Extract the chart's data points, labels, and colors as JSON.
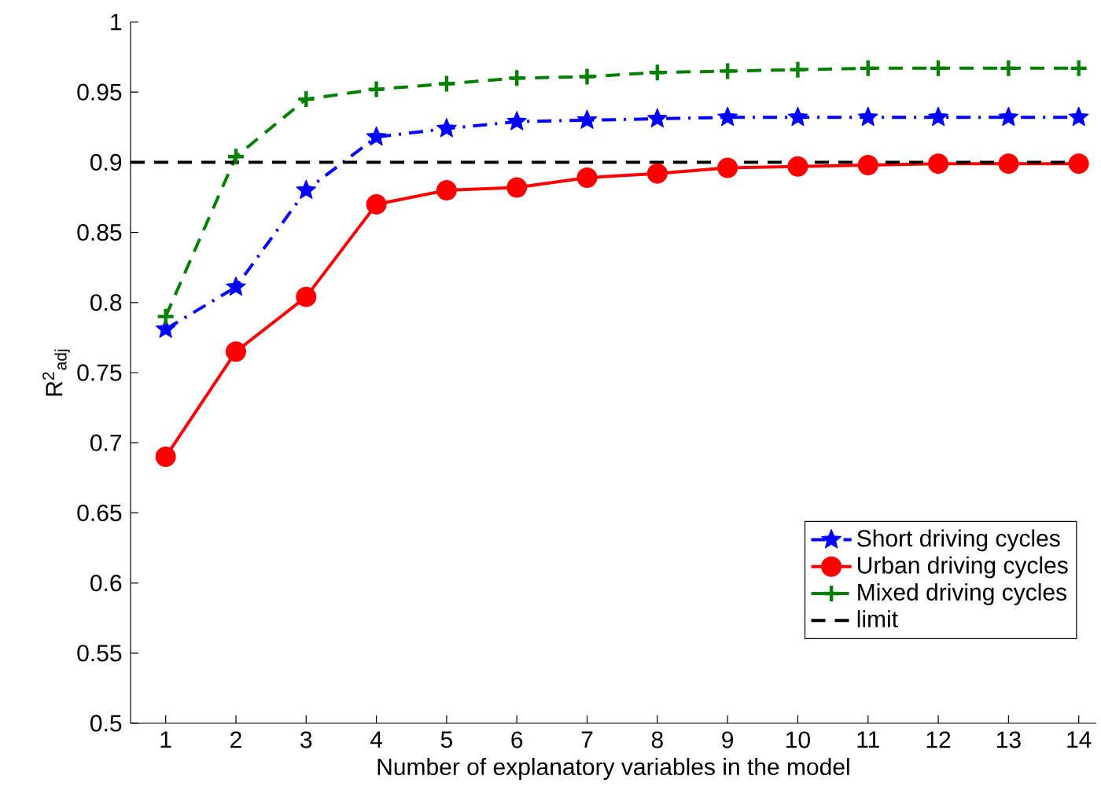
{
  "chart_data": {
    "type": "line",
    "xlabel": "Number of explanatory variables in the model",
    "ylabel": "R$^{2}$$_{adj}$",
    "x": [
      1,
      2,
      3,
      4,
      5,
      6,
      7,
      8,
      9,
      10,
      11,
      12,
      13,
      14
    ],
    "series": [
      {
        "name": "Short driving cycles",
        "color": "#0000ff",
        "marker": "star",
        "line_style": "dashdot",
        "values": [
          0.781,
          0.811,
          0.88,
          0.918,
          0.924,
          0.929,
          0.93,
          0.931,
          0.932,
          0.932,
          0.932,
          0.932,
          0.932,
          0.932
        ]
      },
      {
        "name": "Urban driving cycles",
        "color": "#ff0000",
        "marker": "circle",
        "line_style": "solid",
        "values": [
          0.69,
          0.765,
          0.804,
          0.87,
          0.88,
          0.882,
          0.889,
          0.892,
          0.896,
          0.897,
          0.898,
          0.899,
          0.899,
          0.899
        ]
      },
      {
        "name": "Mixed driving cycles",
        "color": "#008000",
        "marker": "cross",
        "line_style": "dashed",
        "values": [
          0.79,
          0.904,
          0.945,
          0.952,
          0.956,
          0.96,
          0.961,
          0.964,
          0.965,
          0.966,
          0.967,
          0.967,
          0.967,
          0.967
        ]
      }
    ],
    "ref_lines": [
      {
        "axis": "y",
        "value": 0.9,
        "label": "limit",
        "color": "#000000",
        "line_style": "dashed"
      }
    ],
    "xlim": [
      0.5,
      14.25
    ],
    "ylim": [
      0.5,
      1
    ],
    "xticks": [
      1,
      2,
      3,
      4,
      5,
      6,
      7,
      8,
      9,
      10,
      11,
      12,
      13,
      14
    ],
    "yticks": [
      0.5,
      0.55,
      0.6,
      0.65,
      0.7,
      0.75,
      0.8,
      0.85,
      0.9,
      0.95,
      1
    ],
    "grid": false,
    "legend": "bottom right"
  }
}
